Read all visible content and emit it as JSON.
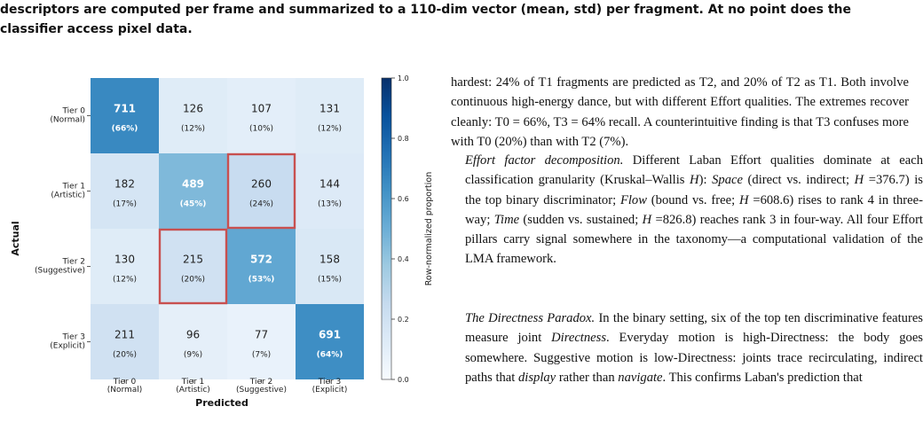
{
  "caption": {
    "line1": "descriptors are computed per frame and summarized to a 110-dim vector (mean, std) per fragment. At no point does the",
    "line2": "classifier access pixel data."
  },
  "chart_data": {
    "type": "heatmap",
    "ylabel": "Actual",
    "xlabel": "Predicted",
    "row_labels": [
      [
        "Tier 0",
        "(Normal)"
      ],
      [
        "Tier 1",
        "(Artistic)"
      ],
      [
        "Tier 2",
        "(Suggestive)"
      ],
      [
        "Tier 3",
        "(Explicit)"
      ]
    ],
    "col_labels": [
      [
        "Tier 0",
        "(Normal)"
      ],
      [
        "Tier 1",
        "(Artistic)"
      ],
      [
        "Tier 2",
        "(Suggestive)"
      ],
      [
        "Tier 3",
        "(Explicit)"
      ]
    ],
    "counts": [
      [
        711,
        126,
        107,
        131
      ],
      [
        182,
        489,
        260,
        144
      ],
      [
        130,
        215,
        572,
        158
      ],
      [
        211,
        96,
        77,
        691
      ]
    ],
    "percents": [
      [
        "(66%)",
        "(12%)",
        "(10%)",
        "(12%)"
      ],
      [
        "(17%)",
        "(45%)",
        "(24%)",
        "(13%)"
      ],
      [
        "(12%)",
        "(20%)",
        "(53%)",
        "(15%)"
      ],
      [
        "(20%)",
        "(9%)",
        "(7%)",
        "(64%)"
      ]
    ],
    "proportions": [
      [
        0.66,
        0.12,
        0.1,
        0.12
      ],
      [
        0.17,
        0.45,
        0.24,
        0.13
      ],
      [
        0.12,
        0.2,
        0.53,
        0.15
      ],
      [
        0.2,
        0.09,
        0.07,
        0.64
      ]
    ],
    "highlighted_cells": [
      [
        1,
        2
      ],
      [
        2,
        1
      ]
    ],
    "colorbar": {
      "label": "Row-normalized proportion",
      "ticks": [
        "0.0",
        "0.2",
        "0.4",
        "0.6",
        "0.8",
        "1.0"
      ],
      "range": [
        0,
        1
      ]
    },
    "colors": {
      "low": "#f7fbff",
      "high": "#08306b",
      "highlight": "#c85050"
    }
  },
  "paragraphs": {
    "p1": "hardest: 24% of T1 fragments are predicted as T2, and 20% of T2 as T1. Both involve continuous high-energy dance, but with different Effort qualities. The extremes recover cleanly: T0 = 66%, T3 = 64% recall. A counterintuitive finding is that T3 confuses more with T0 (20%) than with T2 (7%).",
    "p2": {
      "title": "Effort factor decomposition.",
      "s1": " Different Laban Effort qualities dominate at each classification granularity (Kruskal–Wallis ",
      "H": "H",
      "s2": "): ",
      "space": "Space",
      "s3": " (direct vs. indirect; ",
      "s4": " =376.7) is the top binary discriminator; ",
      "flow": "Flow",
      "s5": " (bound vs. free; ",
      "s6": " =608.6) rises to rank 4 in three-way; ",
      "time": "Time",
      "s7": " (sudden vs. sustained; ",
      "s8": " =826.8) reaches rank 3 in four-way. All four Effort pillars carry signal somewhere in the taxonomy—a computational validation of the LMA framework."
    },
    "p3": {
      "title": "The Directness Paradox.",
      "s1": " In the binary setting, six of the top ten discriminative features measure joint ",
      "directness": "Directness",
      "s2": ". Everyday motion is high-Directness: the body goes somewhere. Suggestive motion is low-Directness: joints trace recirculating, indirect paths that ",
      "display": "display",
      "s3": " rather than ",
      "navigate": "navigate",
      "s4": ". This confirms Laban's prediction that"
    }
  }
}
